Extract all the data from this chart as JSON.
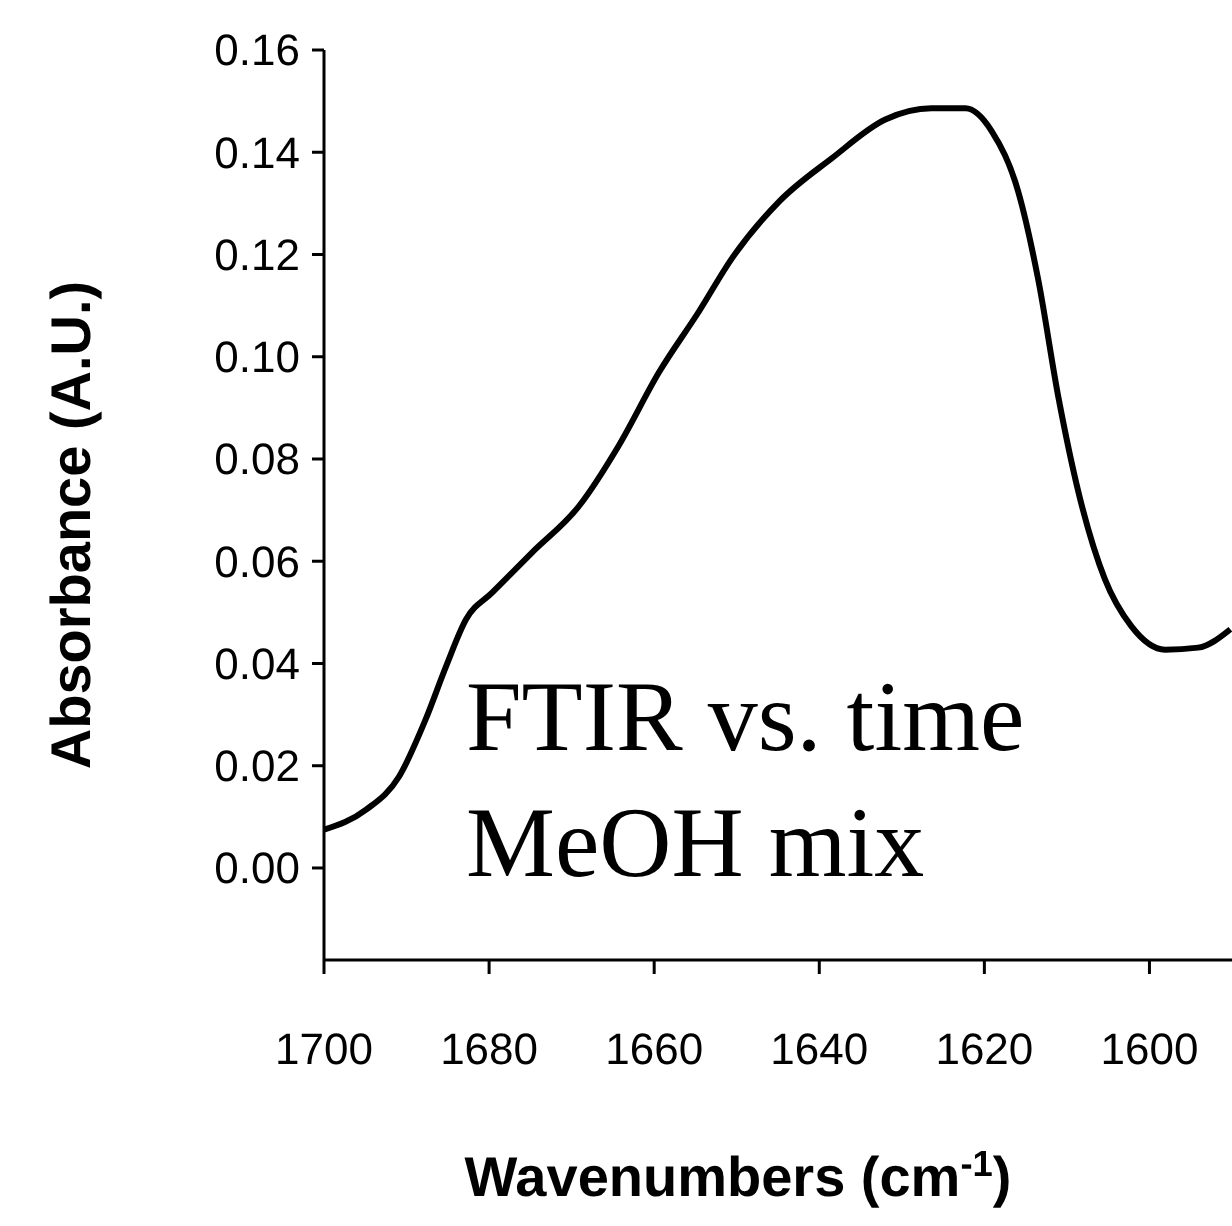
{
  "chart_data": {
    "type": "line",
    "xlabel": "Wavenumbers (cm$^{-1}$)",
    "ylabel": "Absorbance (A.U.)",
    "annotations": [
      "FTIR vs. time",
      "MeOH mix"
    ],
    "xlim": [
      1700,
      1590
    ],
    "ylim": [
      -0.018,
      0.16
    ],
    "xticks": [
      1700,
      1680,
      1660,
      1640,
      1620,
      1600
    ],
    "yticks": [
      {
        "value": 0,
        "label": "0.00"
      },
      {
        "value": 0.02,
        "label": "0.02"
      },
      {
        "value": 0.04,
        "label": "0.04"
      },
      {
        "value": 0.06,
        "label": "0.06"
      },
      {
        "value": 0.08,
        "label": "0.08"
      },
      {
        "value": 0.1,
        "label": "0.10"
      },
      {
        "value": 0.12,
        "label": "0.12"
      },
      {
        "value": 0.14,
        "label": "0.14"
      },
      {
        "value": 0.16,
        "label": "0.16"
      }
    ],
    "grid": false,
    "marker": "none",
    "line_style": "solid",
    "series": [
      {
        "color": "#000000",
        "x": [
          1700,
          1694.9,
          1690.9,
          1687.7,
          1685.2,
          1682.8,
          1679.6,
          1674.8,
          1669.1,
          1664.3,
          1659.4,
          1654.6,
          1650.6,
          1644.9,
          1638.5,
          1632.0,
          1626.4,
          1622.3,
          1619.1,
          1615.9,
          1613.5,
          1611.0,
          1608.6,
          1605.4,
          1602.2,
          1598.1,
          1594.1,
          1590.2
        ],
        "values": [
          0.0075,
          0.0114,
          0.0179,
          0.029,
          0.0395,
          0.0486,
          0.0539,
          0.0617,
          0.0708,
          0.0826,
          0.097,
          0.1088,
          0.1192,
          0.1303,
          0.1388,
          0.1464,
          0.1486,
          0.1486,
          0.1441,
          0.1323,
          0.1153,
          0.0918,
          0.0735,
          0.0565,
          0.0473,
          0.0427,
          0.0431,
          0.0467
        ]
      }
    ]
  }
}
